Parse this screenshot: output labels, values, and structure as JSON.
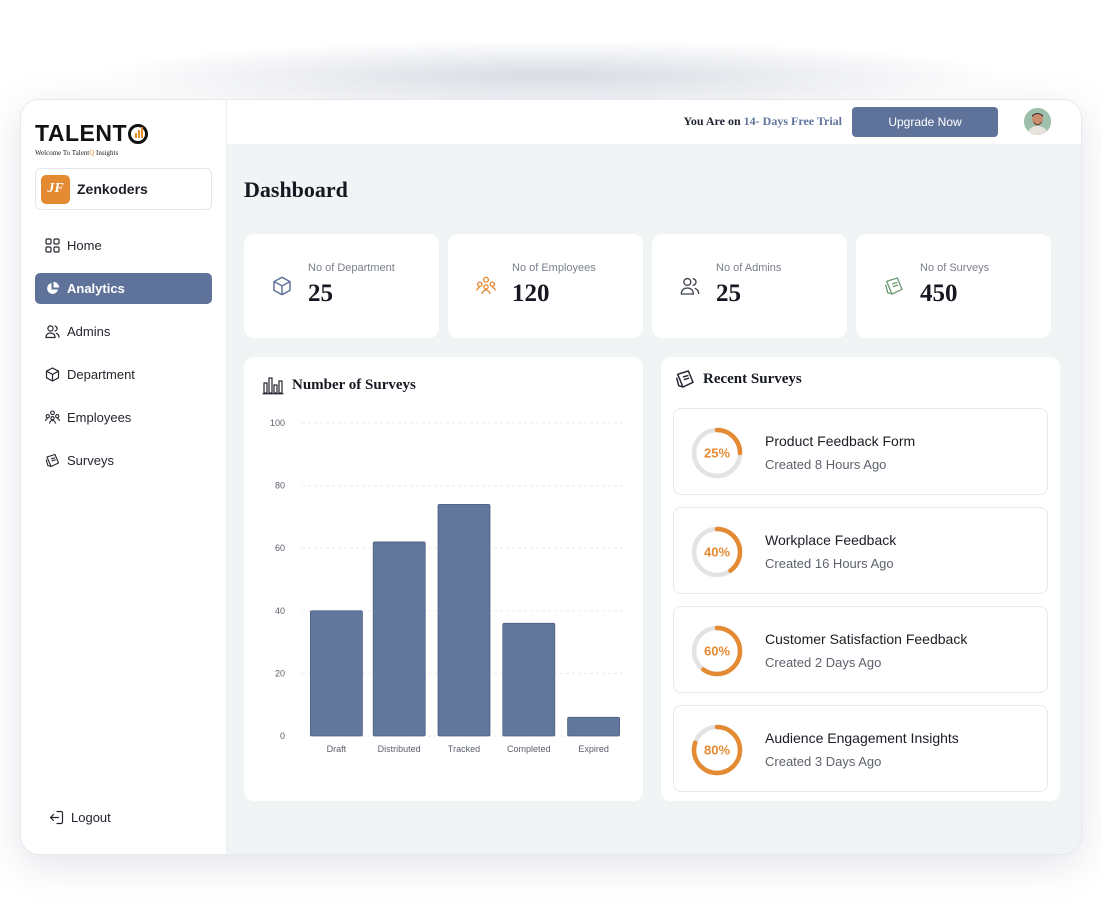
{
  "brand": {
    "logo_text": "TALENT",
    "tagline_pre": "Welcome To Talent",
    "tagline_q": "Q",
    "tagline_post": " Insights"
  },
  "org": {
    "initials": "JF",
    "name": "Zenkoders"
  },
  "sidebar": {
    "items": [
      {
        "label": "Home",
        "icon": "grid-icon"
      },
      {
        "label": "Analytics",
        "icon": "pie-chart-icon",
        "active": true
      },
      {
        "label": "Admins",
        "icon": "users-icon"
      },
      {
        "label": "Department",
        "icon": "cube-icon"
      },
      {
        "label": "Employees",
        "icon": "people-group-icon"
      },
      {
        "label": "Surveys",
        "icon": "survey-icon"
      }
    ],
    "logout_label": "Logout"
  },
  "topbar": {
    "trial_prefix": "You Are on ",
    "trial_highlight": "14- Days Free Trial",
    "upgrade_label": "Upgrade Now"
  },
  "page": {
    "title": "Dashboard"
  },
  "stats": [
    {
      "label": "No of Department",
      "value": "25",
      "icon": "cube-icon",
      "icon_bg": "#eef1f7",
      "icon_color": "#5f739a"
    },
    {
      "label": "No of Employees",
      "value": "120",
      "icon": "people-group-icon",
      "icon_bg": "#fdf1e6",
      "icon_color": "#e48a32"
    },
    {
      "label": "No of Admins",
      "value": "25",
      "icon": "users-icon",
      "icon_bg": "#eff1f3",
      "icon_color": "#3b404a"
    },
    {
      "label": "No of Surveys",
      "value": "450",
      "icon": "survey-icon",
      "icon_bg": "#eef4ee",
      "icon_color": "#6f9a74"
    }
  ],
  "chart_panel": {
    "title": "Number of Surveys"
  },
  "chart_data": {
    "type": "bar",
    "categories": [
      "Draft",
      "Distributed",
      "Tracked",
      "Completed",
      "Expired"
    ],
    "values": [
      40,
      62,
      74,
      36,
      6
    ],
    "ylim": [
      0,
      100
    ],
    "yticks": [
      "100",
      "80",
      "60",
      "40",
      "20",
      "0"
    ],
    "bar_color": "#63779d",
    "grid": true
  },
  "recent": {
    "title": "Recent Surveys",
    "items": [
      {
        "name": "Product Feedback Form",
        "time": "Created 8 Hours Ago",
        "percent_label": "25%",
        "progress": 0.25
      },
      {
        "name": "Workplace Feedback",
        "time": "Created 16 Hours Ago",
        "percent_label": "40%",
        "progress": 0.4
      },
      {
        "name": "Customer Satisfaction Feedback",
        "time": "Created 2 Days Ago",
        "percent_label": "60%",
        "progress": 0.6
      },
      {
        "name": "Audience Engagement Insights",
        "time": "Created 3 Days Ago",
        "percent_label": "80%",
        "progress": 0.8
      }
    ],
    "ring_color": "#e48a32",
    "ring_track": "#e3e3e3"
  }
}
